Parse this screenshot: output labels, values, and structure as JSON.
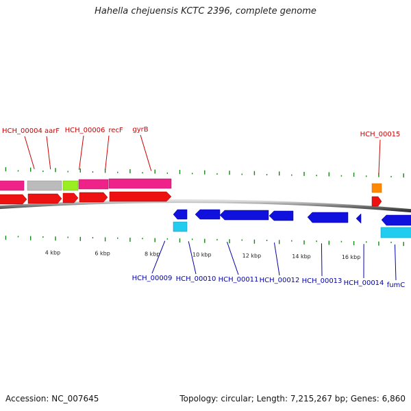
{
  "title": "Hahella chejuensis KCTC 2396, complete genome",
  "footer": {
    "accession": "Accession: NC_007645",
    "summary": "Topology: circular; Length: 7,215,267 bp; Genes: 6,860"
  },
  "scale": {
    "unit_kbp": [
      "4 kbp",
      "6 kbp",
      "8 kbp",
      "10 kbp",
      "12 kbp",
      "14 kbp",
      "16 kbp"
    ],
    "values_kbp": [
      4,
      6,
      8,
      10,
      12,
      14,
      16
    ]
  },
  "colors": {
    "forward_cds": "#ee1111",
    "reverse_cds": "#1111dd",
    "forward_gene": "#ee2288",
    "forward_gene_alt": "#bbbbbb",
    "forward_gene_green": "#99ee22",
    "forward_orange": "#ff8800",
    "reverse_gene": "#22ccee",
    "label_top": "#cc0000",
    "label_bottom": "#0000aa",
    "tick": "#118811",
    "backbone": "#555555"
  },
  "labels_top": [
    {
      "text": "HCH_00004",
      "kbp": 3.15
    },
    {
      "text": "aarF",
      "kbp": 3.8
    },
    {
      "text": "HCH_00006",
      "kbp": 4.95
    },
    {
      "text": "recF",
      "kbp": 6.0
    },
    {
      "text": "gyrB",
      "kbp": 7.85
    },
    {
      "text": "HCH_00015",
      "kbp": 17.0
    }
  ],
  "labels_bottom": [
    {
      "text": "HCH_00009",
      "kbp": 8.4
    },
    {
      "text": "HCH_00010",
      "kbp": 9.35
    },
    {
      "text": "HCH_00011",
      "kbp": 10.9
    },
    {
      "text": "HCH_00012",
      "kbp": 12.8
    },
    {
      "text": "HCH_00013",
      "kbp": 14.7
    },
    {
      "text": "HCH_00014",
      "kbp": 16.4
    },
    {
      "text": "fumC",
      "kbp": 17.65
    }
  ]
}
